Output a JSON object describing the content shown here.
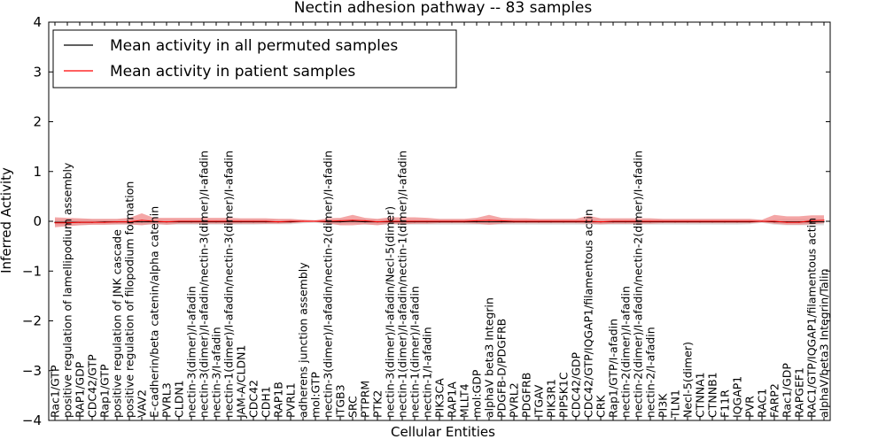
{
  "chart_data": {
    "type": "line",
    "title": "Nectin adhesion pathway -- 83 samples",
    "xlabel": "Cellular Entities",
    "ylabel": "Inferred Activity",
    "ylim": [
      -4,
      4
    ],
    "yticks": [
      "4",
      "3",
      "2",
      "1",
      "0",
      "−1",
      "−2",
      "−3",
      "−4"
    ],
    "ytick_values": [
      4,
      3,
      2,
      1,
      0,
      -1,
      -2,
      -3,
      -4
    ],
    "grid": false,
    "legend_position": "upper-left",
    "categories": [
      "Rac1/GTP",
      "positive regulation of lamellipodium assembly",
      "RAP1/GDP",
      "CDC42/GTP",
      "Rap1/GTP",
      "positive regulation of JNK cascade",
      "positive regulation of filopodium formation",
      "VAV2",
      "E-cadherin/beta catenin/alpha catenin",
      "PVRL3",
      "CLDN1",
      "nectin-3(dimer)/I-afadin",
      "nectin-3(dimer)/I-afadin/nectin-3(dimer)/I-afadin",
      "nectin-3/I-afadin",
      "nectin-1(dimer)/I-afadin/nectin-3(dimer)/I-afadin",
      "JAM-A/CLDN1",
      "CDC42",
      "CDH1",
      "RAP1B",
      "PVRL1",
      "adherens junction assembly",
      "mol:GTP",
      "nectin-3(dimer)/I-afadin/nectin-2(dimer)/I-afadin",
      "ITGB3",
      "SRC",
      "PTPRM",
      "PTK2",
      "nectin-3(dimer)/I-afadin/Necl-5(dimer)",
      "nectin-1(dimer)/I-afadin/nectin-1(dimer)/I-afadin",
      "nectin-1(dimer)/I-afadin",
      "nectin-1/I-afadin",
      "PIK3CA",
      "RAP1A",
      "MLLT4",
      "mol:GDP",
      "alphaV beta3 Integrin",
      "PDGFB-D/PDGFRB",
      "PVRL2",
      "PDGFRB",
      "ITGAV",
      "PIK3R1",
      "PIP5K1C",
      "CDC42/GDP",
      "CDC42/GTP/IQGAP1/filamentous actin",
      "CRK",
      "Rap1/GTP/I-afadin",
      "nectin-2(dimer)/I-afadin",
      "nectin-2(dimer)/I-afadin/nectin-2(dimer)/I-afadin",
      "nectin-2/I-afadin",
      "PI3K",
      "TLN1",
      "Necl-5(dimer)",
      "CTNNA1",
      "CTNNB1",
      "F11R",
      "IQGAP1",
      "PVR",
      "RAC1",
      "FARP2",
      "Rac1/GDP",
      "RAPGEF1",
      "RAC1/GTP/IQGAP1/filamentous actin",
      "alphaV/beta3 Integrin/Talin"
    ],
    "series": [
      {
        "name": "Mean activity in all permuted samples",
        "color": "#000000",
        "values": [
          -0.02,
          -0.02,
          -0.02,
          -0.02,
          -0.01,
          -0.01,
          -0.01,
          -0.01,
          -0.01,
          -0.01,
          -0.01,
          -0.01,
          -0.01,
          -0.01,
          -0.01,
          -0.01,
          -0.01,
          -0.01,
          -0.01,
          -0.01,
          0.0,
          0.0,
          -0.01,
          -0.01,
          0.0,
          -0.01,
          -0.01,
          -0.01,
          -0.01,
          -0.01,
          -0.01,
          -0.01,
          -0.01,
          -0.01,
          -0.01,
          -0.01,
          -0.01,
          -0.01,
          -0.01,
          -0.01,
          -0.01,
          -0.01,
          -0.01,
          -0.01,
          -0.01,
          -0.01,
          -0.01,
          -0.01,
          -0.01,
          -0.01,
          -0.01,
          -0.01,
          -0.01,
          -0.01,
          -0.01,
          -0.01,
          -0.01,
          0.0,
          -0.01,
          -0.01,
          -0.01,
          -0.01,
          -0.01
        ],
        "band_color": "#d4d4d4",
        "lower": [
          -0.08,
          -0.08,
          -0.08,
          -0.07,
          -0.07,
          -0.07,
          -0.07,
          -0.07,
          -0.07,
          -0.07,
          -0.07,
          -0.07,
          -0.07,
          -0.07,
          -0.07,
          -0.07,
          -0.07,
          -0.06,
          -0.06,
          -0.06,
          -0.04,
          -0.03,
          -0.06,
          -0.07,
          -0.05,
          -0.07,
          -0.07,
          -0.07,
          -0.07,
          -0.07,
          -0.07,
          -0.07,
          -0.07,
          -0.07,
          -0.07,
          -0.07,
          -0.07,
          -0.07,
          -0.07,
          -0.07,
          -0.07,
          -0.07,
          -0.07,
          -0.07,
          -0.07,
          -0.07,
          -0.07,
          -0.07,
          -0.07,
          -0.07,
          -0.07,
          -0.07,
          -0.07,
          -0.07,
          -0.07,
          -0.07,
          -0.06,
          -0.03,
          -0.07,
          -0.08,
          -0.08,
          -0.08,
          -0.08
        ],
        "upper": [
          0.04,
          0.04,
          0.04,
          0.04,
          0.04,
          0.04,
          0.04,
          0.04,
          0.04,
          0.04,
          0.04,
          0.04,
          0.04,
          0.04,
          0.04,
          0.04,
          0.04,
          0.04,
          0.04,
          0.04,
          0.03,
          0.02,
          0.04,
          0.04,
          0.04,
          0.04,
          0.04,
          0.04,
          0.04,
          0.04,
          0.04,
          0.04,
          0.04,
          0.04,
          0.04,
          0.04,
          0.04,
          0.04,
          0.04,
          0.04,
          0.04,
          0.04,
          0.04,
          0.04,
          0.04,
          0.04,
          0.04,
          0.04,
          0.04,
          0.04,
          0.04,
          0.04,
          0.04,
          0.04,
          0.04,
          0.04,
          0.04,
          0.02,
          0.04,
          0.05,
          0.05,
          0.05,
          0.05
        ]
      },
      {
        "name": "Mean activity in patient samples",
        "color": "#ff0000",
        "values": [
          -0.03,
          -0.03,
          -0.02,
          -0.02,
          -0.02,
          -0.01,
          -0.01,
          0.02,
          0.0,
          -0.01,
          0.0,
          0.0,
          0.0,
          0.0,
          0.0,
          0.0,
          0.0,
          0.0,
          -0.01,
          0.0,
          0.0,
          0.0,
          0.0,
          0.01,
          0.02,
          0.01,
          -0.01,
          0.0,
          0.0,
          0.0,
          0.0,
          0.0,
          0.0,
          0.0,
          0.01,
          0.02,
          0.01,
          0.0,
          0.0,
          0.0,
          0.0,
          0.0,
          0.0,
          0.0,
          -0.01,
          0.0,
          0.0,
          0.0,
          0.0,
          0.0,
          0.0,
          0.0,
          0.0,
          0.0,
          0.0,
          0.0,
          0.0,
          0.0,
          0.0,
          -0.02,
          -0.02,
          0.01,
          0.02
        ],
        "band_color": "#f08080",
        "lower": [
          -0.12,
          -0.1,
          -0.08,
          -0.07,
          -0.07,
          -0.06,
          -0.06,
          -0.08,
          -0.05,
          -0.07,
          -0.05,
          -0.05,
          -0.05,
          -0.05,
          -0.05,
          -0.05,
          -0.05,
          -0.05,
          -0.05,
          -0.04,
          -0.02,
          -0.01,
          -0.04,
          -0.08,
          -0.08,
          -0.06,
          -0.08,
          -0.05,
          -0.06,
          -0.05,
          -0.05,
          -0.04,
          -0.04,
          -0.04,
          -0.05,
          -0.07,
          -0.05,
          -0.04,
          -0.04,
          -0.04,
          -0.04,
          -0.04,
          -0.04,
          -0.05,
          -0.06,
          -0.05,
          -0.05,
          -0.05,
          -0.05,
          -0.04,
          -0.04,
          -0.04,
          -0.04,
          -0.04,
          -0.04,
          -0.04,
          -0.04,
          -0.02,
          -0.05,
          -0.07,
          -0.07,
          -0.06,
          -0.04
        ],
        "upper": [
          0.08,
          0.07,
          0.06,
          0.05,
          0.05,
          0.05,
          0.07,
          0.16,
          0.07,
          0.07,
          0.07,
          0.07,
          0.07,
          0.07,
          0.07,
          0.06,
          0.06,
          0.06,
          0.05,
          0.05,
          0.03,
          0.02,
          0.06,
          0.07,
          0.13,
          0.07,
          0.05,
          0.08,
          0.08,
          0.08,
          0.07,
          0.05,
          0.05,
          0.05,
          0.07,
          0.13,
          0.07,
          0.06,
          0.06,
          0.05,
          0.05,
          0.05,
          0.05,
          0.11,
          0.06,
          0.06,
          0.06,
          0.06,
          0.06,
          0.05,
          0.05,
          0.05,
          0.05,
          0.05,
          0.05,
          0.05,
          0.05,
          0.03,
          0.13,
          0.1,
          0.1,
          0.12,
          0.12
        ]
      }
    ]
  }
}
